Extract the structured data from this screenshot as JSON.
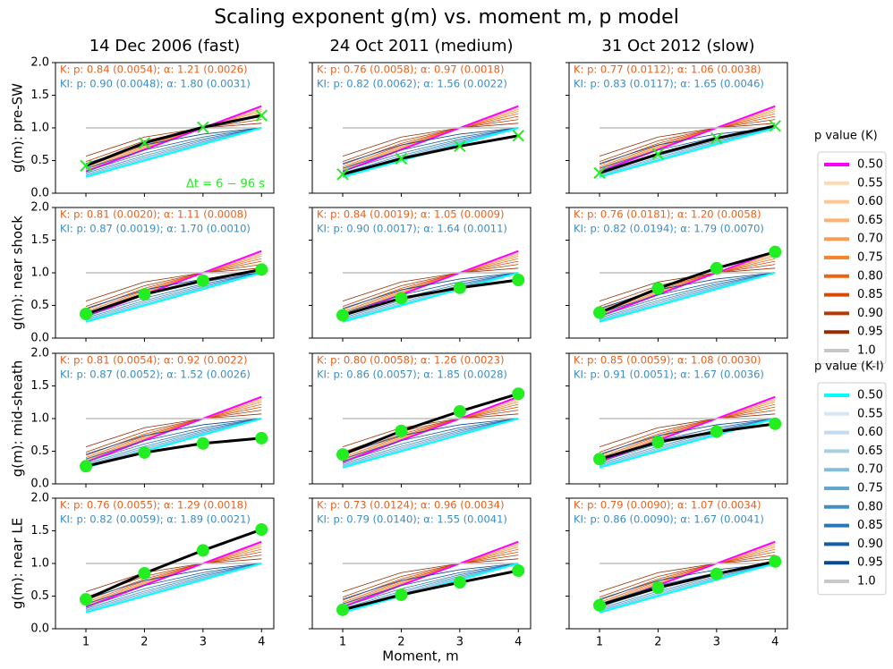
{
  "chart_data": {
    "type": "line",
    "title": "Scaling exponent g(m) vs. moment m,  p model",
    "x_label": "Moment, m",
    "columns": [
      "14 Dec 2006 (fast)",
      "24 Oct 2011 (medium)",
      "31 Oct 2012 (slow)"
    ],
    "rows": [
      "g(m): pre-SW",
      "g(m): near shock",
      "g(m): mid-sheath",
      "g(m): near LE"
    ],
    "x": [
      1,
      2,
      3,
      4
    ],
    "xlim": [
      0.48,
      4.21
    ],
    "xticks": [
      1,
      2,
      3,
      4
    ],
    "ylim": [
      0,
      2
    ],
    "yticks": [
      {
        "value": 0,
        "label": "0.0"
      },
      {
        "value": 0.5,
        "label": "0.5"
      },
      {
        "value": 1,
        "label": "1.0"
      },
      {
        "value": 1.5,
        "label": "1.5"
      },
      {
        "value": 2,
        "label": "2.0"
      }
    ],
    "line_color": "#000000",
    "marker_color": "#22ee22",
    "model_K": {
      "title": "p value (K)",
      "series": [
        {
          "name": "0.50",
          "color": "#ff00ff",
          "values": [
            0.333,
            0.667,
            1.0,
            1.333
          ]
        },
        {
          "name": "0.55",
          "color": "#fdd9b4",
          "values": [
            0.335,
            0.668,
            1.0,
            1.33
          ]
        },
        {
          "name": "0.60",
          "color": "#fdc692",
          "values": [
            0.34,
            0.673,
            1.0,
            1.321
          ]
        },
        {
          "name": "0.65",
          "color": "#fdb272",
          "values": [
            0.348,
            0.682,
            1.0,
            1.305
          ]
        },
        {
          "name": "0.70",
          "color": "#fd9b51",
          "values": [
            0.361,
            0.694,
            1.0,
            1.282
          ]
        },
        {
          "name": "0.75",
          "color": "#f8832f",
          "values": [
            0.378,
            0.71,
            1.0,
            1.253
          ]
        },
        {
          "name": "0.80",
          "color": "#ea6513",
          "values": [
            0.403,
            0.732,
            1.0,
            1.218
          ]
        },
        {
          "name": "0.85",
          "color": "#d54a04",
          "values": [
            0.436,
            0.762,
            1.0,
            1.176
          ]
        },
        {
          "name": "0.90",
          "color": "#b53a03",
          "values": [
            0.484,
            0.801,
            1.0,
            1.128
          ]
        },
        {
          "name": "0.95",
          "color": "#942d03",
          "values": [
            0.566,
            0.86,
            1.0,
            1.071
          ]
        },
        {
          "name": "1.0",
          "color": "#c8c8c8",
          "values": [
            1.0,
            1.0,
            1.0,
            1.0
          ]
        }
      ]
    },
    "model_KI": {
      "title": "p value (K-I)",
      "series": [
        {
          "name": "0.50",
          "color": "#00ffff",
          "values": [
            0.25,
            0.5,
            0.75,
            1.0
          ]
        },
        {
          "name": "0.55",
          "color": "#d6e6f4",
          "values": [
            0.251,
            0.502,
            0.751,
            1.0
          ]
        },
        {
          "name": "0.60",
          "color": "#c4daee",
          "values": [
            0.255,
            0.507,
            0.756,
            1.0
          ]
        },
        {
          "name": "0.65",
          "color": "#a9cfe5",
          "values": [
            0.263,
            0.517,
            0.762,
            1.0
          ]
        },
        {
          "name": "0.70",
          "color": "#86bcdc",
          "values": [
            0.273,
            0.531,
            0.773,
            1.0
          ]
        },
        {
          "name": "0.75",
          "color": "#61a7d2",
          "values": [
            0.288,
            0.55,
            0.786,
            1.0
          ]
        },
        {
          "name": "0.80",
          "color": "#3f8fc5",
          "values": [
            0.309,
            0.576,
            0.805,
            1.0
          ]
        },
        {
          "name": "0.85",
          "color": "#2676b8",
          "values": [
            0.338,
            0.611,
            0.828,
            1.0
          ]
        },
        {
          "name": "0.90",
          "color": "#125ea6",
          "values": [
            0.381,
            0.661,
            0.86,
            1.0
          ]
        },
        {
          "name": "0.95",
          "color": "#084a91",
          "values": [
            0.454,
            0.739,
            0.905,
            1.0
          ]
        },
        {
          "name": "1.0",
          "color": "#c8c8c8",
          "values": [
            1.0,
            1.0,
            1.0,
            1.0
          ]
        }
      ]
    },
    "panels": [
      {
        "marker": "x",
        "values": [
          0.42,
          0.77,
          1.01,
          1.19
        ],
        "note": {
          "text": "Δt = 6 − 96 s",
          "color": "#22ee22"
        },
        "annotations": [
          {
            "text": "K: p: 0.84 (0.0054); α: 1.21 (0.0026)",
            "color": "#e8601c"
          },
          {
            "text": "KI: p: 0.90 (0.0048); α: 1.80 (0.0031)",
            "color": "#3a8cc4"
          }
        ]
      },
      {
        "marker": "x",
        "values": [
          0.29,
          0.53,
          0.72,
          0.88
        ],
        "annotations": [
          {
            "text": "K: p: 0.76 (0.0058); α: 0.97 (0.0018)",
            "color": "#e8601c"
          },
          {
            "text": "KI: p: 0.82 (0.0062); α: 1.56 (0.0022)",
            "color": "#3a8cc4"
          }
        ]
      },
      {
        "marker": "x",
        "values": [
          0.31,
          0.6,
          0.84,
          1.03
        ],
        "annotations": [
          {
            "text": "K: p: 0.77 (0.0112); α: 1.06 (0.0038)",
            "color": "#e8601c"
          },
          {
            "text": "KI: p: 0.83 (0.0117); α: 1.65 (0.0046)",
            "color": "#3a8cc4"
          }
        ]
      },
      {
        "marker": "o",
        "values": [
          0.37,
          0.67,
          0.88,
          1.05
        ],
        "annotations": [
          {
            "text": "K: p: 0.81 (0.0020); α: 1.11 (0.0008)",
            "color": "#e8601c"
          },
          {
            "text": "KI: p: 0.87 (0.0019); α: 1.70 (0.0010)",
            "color": "#3a8cc4"
          }
        ]
      },
      {
        "marker": "o",
        "values": [
          0.35,
          0.61,
          0.77,
          0.89
        ],
        "annotations": [
          {
            "text": "K: p: 0.84 (0.0019); α: 1.05 (0.0009)",
            "color": "#e8601c"
          },
          {
            "text": "KI: p: 0.90 (0.0017); α: 1.64 (0.0011)",
            "color": "#3a8cc4"
          }
        ]
      },
      {
        "marker": "o",
        "values": [
          0.39,
          0.76,
          1.07,
          1.32
        ],
        "annotations": [
          {
            "text": "K: p: 0.76 (0.0181); α: 1.20 (0.0058)",
            "color": "#e8601c"
          },
          {
            "text": "KI: p: 0.82 (0.0194); α: 1.79 (0.0070)",
            "color": "#3a8cc4"
          }
        ]
      },
      {
        "marker": "o",
        "values": [
          0.27,
          0.48,
          0.62,
          0.7
        ],
        "annotations": [
          {
            "text": "K: p: 0.81 (0.0054); α: 0.92 (0.0022)",
            "color": "#e8601c"
          },
          {
            "text": "KI: p: 0.87 (0.0052); α: 1.52 (0.0026)",
            "color": "#3a8cc4"
          }
        ]
      },
      {
        "marker": "o",
        "values": [
          0.45,
          0.81,
          1.11,
          1.38
        ],
        "annotations": [
          {
            "text": "K: p: 0.80 (0.0058); α: 1.26 (0.0023)",
            "color": "#e8601c"
          },
          {
            "text": "KI: p: 0.86 (0.0057); α: 1.85 (0.0028)",
            "color": "#3a8cc4"
          }
        ]
      },
      {
        "marker": "o",
        "values": [
          0.38,
          0.64,
          0.8,
          0.92
        ],
        "annotations": [
          {
            "text": "K: p: 0.85 (0.0059); α: 1.08 (0.0030)",
            "color": "#e8601c"
          },
          {
            "text": "KI: p: 0.91 (0.0051); α: 1.67 (0.0036)",
            "color": "#3a8cc4"
          }
        ]
      },
      {
        "marker": "o",
        "values": [
          0.45,
          0.85,
          1.2,
          1.52
        ],
        "annotations": [
          {
            "text": "K: p: 0.76 (0.0055); α: 1.29 (0.0018)",
            "color": "#e8601c"
          },
          {
            "text": "KI: p: 0.82 (0.0059); α: 1.89 (0.0021)",
            "color": "#3a8cc4"
          }
        ]
      },
      {
        "marker": "o",
        "values": [
          0.29,
          0.52,
          0.71,
          0.89
        ],
        "annotations": [
          {
            "text": "K: p: 0.73 (0.0124); α: 0.96 (0.0034)",
            "color": "#e8601c"
          },
          {
            "text": "KI: p: 0.79 (0.0140); α: 1.55 (0.0041)",
            "color": "#3a8cc4"
          }
        ]
      },
      {
        "marker": "o",
        "values": [
          0.36,
          0.63,
          0.84,
          1.03
        ],
        "annotations": [
          {
            "text": "K: p: 0.79 (0.0090); α: 1.07 (0.0034)",
            "color": "#e8601c"
          },
          {
            "text": "KI: p: 0.86 (0.0090); α: 1.67 (0.0041)",
            "color": "#3a8cc4"
          }
        ]
      }
    ]
  }
}
